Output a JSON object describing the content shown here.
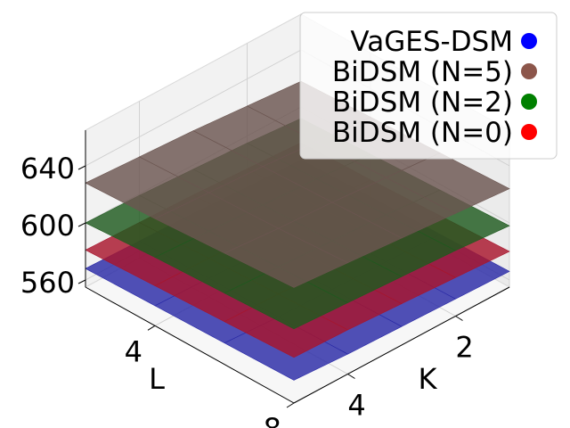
{
  "chart_data": {
    "type": "surface3d",
    "xlabel": "K",
    "ylabel": "L",
    "x_ticks": [
      "2",
      "4"
    ],
    "y_ticks": [
      "4",
      "8"
    ],
    "z_ticks": [
      "560",
      "600",
      "640"
    ],
    "zlim": [
      555,
      665
    ],
    "K": [
      1,
      2,
      3,
      4,
      5
    ],
    "L": [
      2,
      4,
      6,
      8
    ],
    "legend": {
      "position": "top-right"
    },
    "grid": true,
    "series": [
      {
        "name": "VaGES-DSM",
        "color": "#0000ff",
        "surface_color": "#2a2aa6",
        "values": [
          [
            563,
            564,
            566,
            567,
            568
          ],
          [
            564,
            565,
            566,
            568,
            569
          ],
          [
            565,
            566,
            567,
            568,
            570
          ],
          [
            566,
            567,
            568,
            569,
            571
          ]
        ]
      },
      {
        "name": "BiDSM (N=0)",
        "color": "#ff0000",
        "surface_color": "#a8152c",
        "values": [
          [
            575,
            577,
            579,
            580,
            581
          ],
          [
            576,
            578,
            580,
            582,
            583
          ],
          [
            578,
            580,
            582,
            584,
            585
          ],
          [
            580,
            582,
            584,
            586,
            587
          ]
        ]
      },
      {
        "name": "BiDSM (N=2)",
        "color": "#008000",
        "surface_color": "#1f5a1f",
        "values": [
          [
            592,
            595,
            597,
            599,
            600
          ],
          [
            594,
            597,
            599,
            601,
            603
          ],
          [
            596,
            599,
            601,
            603,
            605
          ],
          [
            598,
            601,
            603,
            605,
            607
          ]
        ]
      },
      {
        "name": "BiDSM (N=5)",
        "color": "#8c564b",
        "surface_color": "#6b5550",
        "values": [
          [
            618,
            621,
            624,
            626,
            628
          ],
          [
            620,
            623,
            626,
            628,
            630
          ],
          [
            622,
            625,
            628,
            630,
            633
          ],
          [
            624,
            627,
            630,
            633,
            636
          ]
        ]
      }
    ],
    "legend_order": [
      "VaGES-DSM",
      "BiDSM (N=5)",
      "BiDSM (N=2)",
      "BiDSM (N=0)"
    ]
  }
}
